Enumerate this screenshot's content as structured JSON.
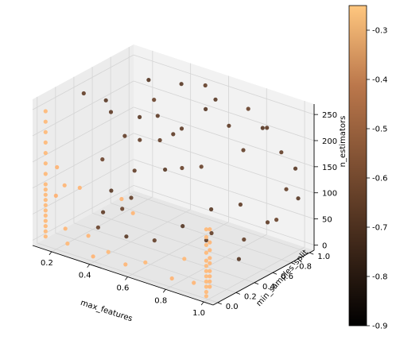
{
  "chart_data": {
    "type": "scatter",
    "projection": "3d",
    "axes": {
      "x": {
        "label": "max_features",
        "ticks": [
          "0.2",
          "0.4",
          "0.6",
          "0.8",
          "1.0"
        ],
        "tick_values": [
          0.2,
          0.4,
          0.6,
          0.8,
          1.0
        ],
        "range": [
          0.1,
          1.05
        ]
      },
      "y": {
        "label": "min_samples_split",
        "ticks": [
          "0.0",
          "0.2",
          "0.4",
          "0.6",
          "0.8",
          "1.0"
        ],
        "tick_values": [
          0.0,
          0.2,
          0.4,
          0.6,
          0.8,
          1.0
        ],
        "range": [
          -0.05,
          1.05
        ]
      },
      "z": {
        "label": "n_estimators",
        "ticks": [
          "0",
          "50",
          "100",
          "150",
          "200",
          "250"
        ],
        "tick_values": [
          0,
          50,
          100,
          150,
          200,
          250
        ],
        "range": [
          -10,
          270
        ]
      }
    },
    "grid": true,
    "colorbar": {
      "colormap": "copper",
      "range": [
        -0.9,
        -0.25
      ],
      "ticks": [
        "-0.3",
        "-0.4",
        "-0.5",
        "-0.6",
        "-0.7",
        "-0.8",
        "-0.9"
      ],
      "tick_values": [
        -0.3,
        -0.4,
        -0.5,
        -0.6,
        -0.7,
        -0.8,
        -0.9
      ]
    },
    "points": [
      {
        "x": 0.12,
        "y": 0.05,
        "z": 240,
        "c": -0.3
      },
      {
        "x": 0.12,
        "y": 0.05,
        "z": 220,
        "c": -0.3
      },
      {
        "x": 0.12,
        "y": 0.05,
        "z": 200,
        "c": -0.3
      },
      {
        "x": 0.12,
        "y": 0.05,
        "z": 180,
        "c": -0.3
      },
      {
        "x": 0.12,
        "y": 0.05,
        "z": 160,
        "c": -0.3
      },
      {
        "x": 0.12,
        "y": 0.05,
        "z": 140,
        "c": -0.3
      },
      {
        "x": 0.12,
        "y": 0.05,
        "z": 120,
        "c": -0.3
      },
      {
        "x": 0.12,
        "y": 0.05,
        "z": 100,
        "c": -0.3
      },
      {
        "x": 0.12,
        "y": 0.05,
        "z": 90,
        "c": -0.3
      },
      {
        "x": 0.12,
        "y": 0.05,
        "z": 80,
        "c": -0.3
      },
      {
        "x": 0.12,
        "y": 0.05,
        "z": 70,
        "c": -0.3
      },
      {
        "x": 0.12,
        "y": 0.05,
        "z": 60,
        "c": -0.3
      },
      {
        "x": 0.12,
        "y": 0.05,
        "z": 50,
        "c": -0.3
      },
      {
        "x": 0.12,
        "y": 0.05,
        "z": 40,
        "c": -0.3
      },
      {
        "x": 0.12,
        "y": 0.05,
        "z": 30,
        "c": -0.3
      },
      {
        "x": 0.12,
        "y": 0.05,
        "z": 20,
        "c": -0.3
      },
      {
        "x": 0.12,
        "y": 0.05,
        "z": 10,
        "c": -0.3
      },
      {
        "x": 0.12,
        "y": 0.05,
        "z": 0,
        "c": -0.3
      },
      {
        "x": 0.18,
        "y": 0.05,
        "z": 140,
        "c": -0.32
      },
      {
        "x": 0.22,
        "y": 0.05,
        "z": 110,
        "c": -0.31
      },
      {
        "x": 0.16,
        "y": 0.08,
        "z": 80,
        "c": -0.33
      },
      {
        "x": 0.2,
        "y": 0.1,
        "z": 20,
        "c": -0.31
      },
      {
        "x": 0.25,
        "y": 0.02,
        "z": 5,
        "c": -0.3
      },
      {
        "x": 0.3,
        "y": 0.05,
        "z": 115,
        "c": -0.32
      },
      {
        "x": 0.35,
        "y": 0.04,
        "z": 30,
        "c": -0.31
      },
      {
        "x": 0.38,
        "y": 0.03,
        "z": -5,
        "c": -0.32
      },
      {
        "x": 0.45,
        "y": 0.05,
        "z": 10,
        "c": -0.3
      },
      {
        "x": 0.55,
        "y": 0.03,
        "z": 0,
        "c": -0.31
      },
      {
        "x": 0.65,
        "y": 0.04,
        "z": 15,
        "c": -0.3
      },
      {
        "x": 0.78,
        "y": 0.06,
        "z": -2,
        "c": -0.32
      },
      {
        "x": 0.85,
        "y": 0.05,
        "z": 45,
        "c": -0.3
      },
      {
        "x": 0.9,
        "y": 0.05,
        "z": 5,
        "c": -0.31
      },
      {
        "x": 0.52,
        "y": 0.05,
        "z": 120,
        "c": -0.32
      },
      {
        "x": 0.58,
        "y": 0.05,
        "z": 100,
        "c": -0.31
      },
      {
        "x": 0.98,
        "y": 0.02,
        "z": 120,
        "c": -0.3
      },
      {
        "x": 0.98,
        "y": 0.02,
        "z": 105,
        "c": -0.3
      },
      {
        "x": 0.98,
        "y": 0.02,
        "z": 90,
        "c": -0.3
      },
      {
        "x": 0.98,
        "y": 0.02,
        "z": 75,
        "c": -0.3
      },
      {
        "x": 0.98,
        "y": 0.02,
        "z": 60,
        "c": -0.3
      },
      {
        "x": 0.98,
        "y": 0.02,
        "z": 50,
        "c": -0.3
      },
      {
        "x": 0.98,
        "y": 0.02,
        "z": 40,
        "c": -0.3
      },
      {
        "x": 0.98,
        "y": 0.02,
        "z": 30,
        "c": -0.3
      },
      {
        "x": 0.98,
        "y": 0.02,
        "z": 20,
        "c": -0.3
      },
      {
        "x": 0.98,
        "y": 0.02,
        "z": 10,
        "c": -0.3
      },
      {
        "x": 0.98,
        "y": 0.02,
        "z": 0,
        "c": -0.3
      },
      {
        "x": 0.98,
        "y": 0.02,
        "z": -8,
        "c": -0.3
      },
      {
        "x": 0.96,
        "y": 0.1,
        "z": 110,
        "c": -0.31
      },
      {
        "x": 0.96,
        "y": 0.1,
        "z": 85,
        "c": -0.31
      },
      {
        "x": 0.96,
        "y": 0.1,
        "z": 70,
        "c": -0.31
      },
      {
        "x": 0.96,
        "y": 0.1,
        "z": 55,
        "c": -0.31
      },
      {
        "x": 0.96,
        "y": 0.1,
        "z": 45,
        "c": -0.31
      },
      {
        "x": 0.96,
        "y": 0.1,
        "z": 30,
        "c": -0.31
      },
      {
        "x": 0.96,
        "y": 0.1,
        "z": 20,
        "c": -0.31
      },
      {
        "x": 0.96,
        "y": 0.1,
        "z": 10,
        "c": -0.31
      },
      {
        "x": 0.96,
        "y": 0.1,
        "z": 0,
        "c": -0.31
      },
      {
        "x": 0.2,
        "y": 0.3,
        "z": 260,
        "c": -0.7
      },
      {
        "x": 0.22,
        "y": 0.5,
        "z": 230,
        "c": -0.72
      },
      {
        "x": 0.25,
        "y": 0.4,
        "z": 130,
        "c": -0.68
      },
      {
        "x": 0.15,
        "y": 0.7,
        "z": 180,
        "c": -0.71
      },
      {
        "x": 0.3,
        "y": 0.8,
        "z": 250,
        "c": -0.73
      },
      {
        "x": 0.28,
        "y": 0.9,
        "z": 200,
        "c": -0.69
      },
      {
        "x": 0.35,
        "y": 0.6,
        "z": 160,
        "c": -0.7
      },
      {
        "x": 0.4,
        "y": 0.95,
        "z": 240,
        "c": -0.72
      },
      {
        "x": 0.45,
        "y": 0.85,
        "z": 170,
        "c": -0.71
      },
      {
        "x": 0.5,
        "y": 0.75,
        "z": 110,
        "c": -0.69
      },
      {
        "x": 0.55,
        "y": 0.9,
        "z": 260,
        "c": -0.7
      },
      {
        "x": 0.6,
        "y": 0.8,
        "z": 230,
        "c": -0.73
      },
      {
        "x": 0.65,
        "y": 0.95,
        "z": 190,
        "c": -0.71
      },
      {
        "x": 0.7,
        "y": 0.7,
        "z": 270,
        "c": -0.72
      },
      {
        "x": 0.75,
        "y": 0.9,
        "z": 160,
        "c": -0.7
      },
      {
        "x": 0.8,
        "y": 0.85,
        "z": 250,
        "c": -0.69
      },
      {
        "x": 0.85,
        "y": 0.95,
        "z": 210,
        "c": -0.71
      },
      {
        "x": 0.9,
        "y": 0.8,
        "z": 230,
        "c": -0.73
      },
      {
        "x": 0.95,
        "y": 0.9,
        "z": 180,
        "c": -0.7
      },
      {
        "x": 1.0,
        "y": 0.95,
        "z": 150,
        "c": -0.72
      },
      {
        "x": 1.0,
        "y": 0.85,
        "z": 120,
        "c": -0.7
      },
      {
        "x": 0.95,
        "y": 0.75,
        "z": 60,
        "c": -0.71
      },
      {
        "x": 0.9,
        "y": 0.95,
        "z": 40,
        "c": -0.69
      },
      {
        "x": 1.0,
        "y": 0.98,
        "z": 90,
        "c": -0.72
      },
      {
        "x": 0.85,
        "y": 0.7,
        "z": 20,
        "c": -0.7
      },
      {
        "x": 0.7,
        "y": 0.6,
        "z": 10,
        "c": -0.71
      },
      {
        "x": 0.6,
        "y": 0.55,
        "z": 30,
        "c": -0.73
      },
      {
        "x": 0.5,
        "y": 0.45,
        "z": 0,
        "c": -0.7
      },
      {
        "x": 0.4,
        "y": 0.35,
        "z": 5,
        "c": -0.72
      },
      {
        "x": 0.3,
        "y": 0.25,
        "z": 20,
        "c": -0.69
      },
      {
        "x": 0.35,
        "y": 0.2,
        "z": 60,
        "c": -0.71
      },
      {
        "x": 0.45,
        "y": 0.3,
        "z": 90,
        "c": -0.7
      },
      {
        "x": 0.2,
        "y": 0.6,
        "z": 45,
        "c": -0.72
      },
      {
        "x": 0.25,
        "y": 0.75,
        "z": 75,
        "c": -0.7
      },
      {
        "x": 0.55,
        "y": 0.55,
        "z": 200,
        "c": -0.71
      },
      {
        "x": 0.65,
        "y": 0.65,
        "z": 140,
        "c": -0.69
      },
      {
        "x": 0.75,
        "y": 0.55,
        "z": 80,
        "c": -0.72
      },
      {
        "x": 0.8,
        "y": 0.45,
        "z": 50,
        "c": -0.7
      },
      {
        "x": 0.88,
        "y": 0.6,
        "z": 100,
        "c": -0.71
      },
      {
        "x": 0.92,
        "y": 0.5,
        "z": 10,
        "c": -0.73
      },
      {
        "x": 0.15,
        "y": 0.85,
        "z": 120,
        "c": -0.7
      },
      {
        "x": 0.18,
        "y": 0.95,
        "z": 150,
        "c": -0.72
      },
      {
        "x": 0.42,
        "y": 0.65,
        "z": 210,
        "c": -0.71
      },
      {
        "x": 0.48,
        "y": 0.55,
        "z": 180,
        "c": -0.7
      },
      {
        "x": 0.58,
        "y": 0.4,
        "z": 150,
        "c": -0.72
      },
      {
        "x": 0.33,
        "y": 0.45,
        "z": 40,
        "c": -0.69
      }
    ]
  }
}
